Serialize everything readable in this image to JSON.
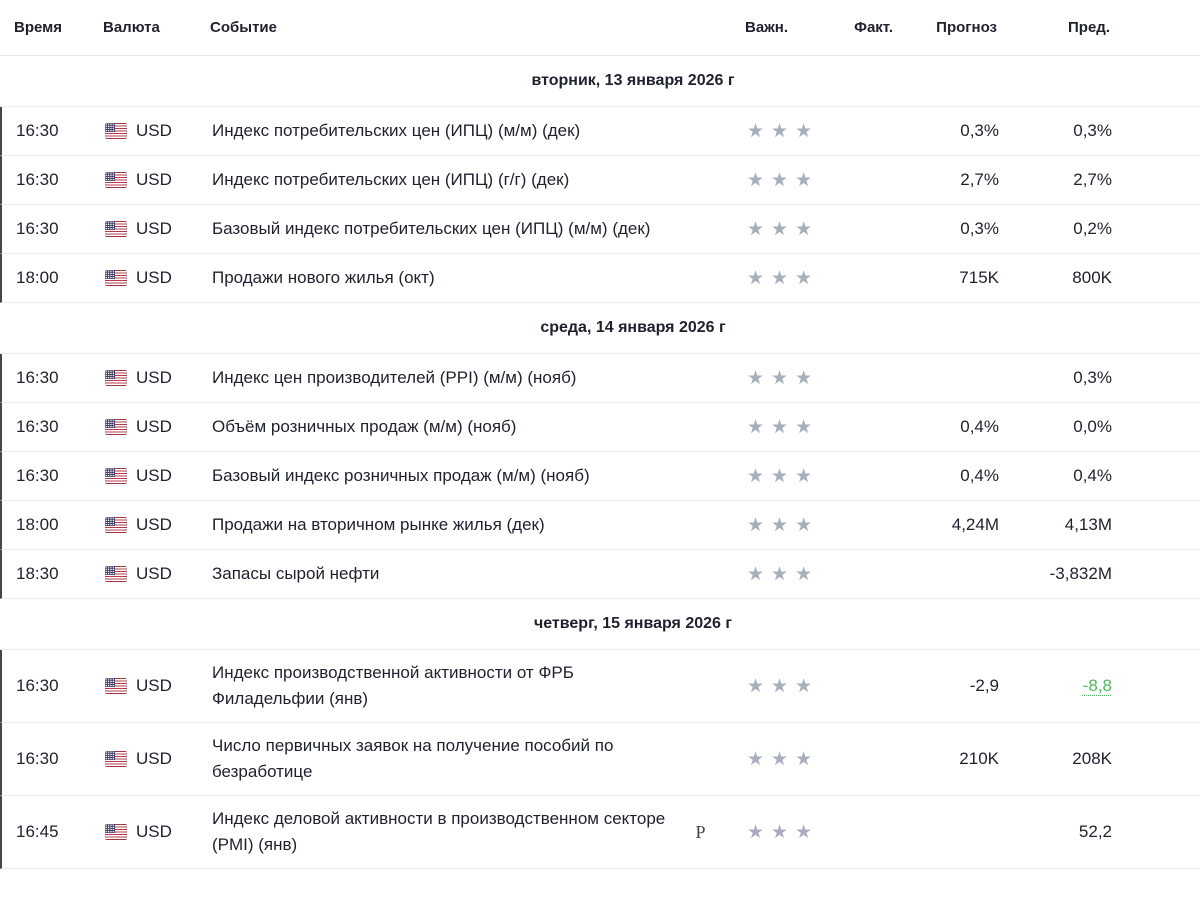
{
  "header": {
    "time": "Время",
    "currency": "Валюта",
    "event": "Событие",
    "importance": "Важн.",
    "actual": "Факт.",
    "forecast": "Прогноз",
    "previous": "Пред."
  },
  "icons": {
    "star": "★",
    "flag": "us-flag-icon",
    "preliminary_marker": "P"
  },
  "colors": {
    "text": "#1e222d",
    "star_gray": "#a8aebc",
    "green_link": "#4cbb5a",
    "divider": "#e9ecf1"
  },
  "sections": [
    {
      "date": "вторник, 13 января 2026 г",
      "rows": [
        {
          "time": "16:30",
          "currency": "USD",
          "event": "Индекс потребительских цен (ИПЦ) (м/м) (дек)",
          "preliminary": false,
          "importance": 3,
          "actual": "",
          "forecast": "0,3%",
          "previous": "0,3%",
          "previous_link": false
        },
        {
          "time": "16:30",
          "currency": "USD",
          "event": "Индекс потребительских цен (ИПЦ) (г/г) (дек)",
          "preliminary": false,
          "importance": 3,
          "actual": "",
          "forecast": "2,7%",
          "previous": "2,7%",
          "previous_link": false
        },
        {
          "time": "16:30",
          "currency": "USD",
          "event": "Базовый индекс потребительских цен (ИПЦ) (м/м) (дек)",
          "preliminary": false,
          "importance": 3,
          "actual": "",
          "forecast": "0,3%",
          "previous": "0,2%",
          "previous_link": false
        },
        {
          "time": "18:00",
          "currency": "USD",
          "event": "Продажи нового жилья  (окт)",
          "preliminary": false,
          "importance": 3,
          "actual": "",
          "forecast": "715K",
          "previous": "800K",
          "previous_link": false
        }
      ]
    },
    {
      "date": "среда, 14 января 2026 г",
      "rows": [
        {
          "time": "16:30",
          "currency": "USD",
          "event": "Индекс цен производителей (PPI) (м/м) (нояб)",
          "preliminary": false,
          "importance": 3,
          "actual": "",
          "forecast": "",
          "previous": "0,3%",
          "previous_link": false
        },
        {
          "time": "16:30",
          "currency": "USD",
          "event": "Объём розничных продаж (м/м) (нояб)",
          "preliminary": false,
          "importance": 3,
          "actual": "",
          "forecast": "0,4%",
          "previous": "0,0%",
          "previous_link": false
        },
        {
          "time": "16:30",
          "currency": "USD",
          "event": "Базовый индекс розничных продаж (м/м) (нояб)",
          "preliminary": false,
          "importance": 3,
          "actual": "",
          "forecast": "0,4%",
          "previous": "0,4%",
          "previous_link": false
        },
        {
          "time": "18:00",
          "currency": "USD",
          "event": "Продажи на вторичном рынке жилья  (дек)",
          "preliminary": false,
          "importance": 3,
          "actual": "",
          "forecast": "4,24M",
          "previous": "4,13M",
          "previous_link": false
        },
        {
          "time": "18:30",
          "currency": "USD",
          "event": "Запасы сырой нефти",
          "preliminary": false,
          "importance": 3,
          "actual": "",
          "forecast": "",
          "previous": "-3,832M",
          "previous_link": false
        }
      ]
    },
    {
      "date": "четверг, 15 января 2026 г",
      "rows": [
        {
          "time": "16:30",
          "currency": "USD",
          "event": "Индекс производственной активности от ФРБ Филадельфии  (янв)",
          "preliminary": false,
          "importance": 3,
          "actual": "",
          "forecast": "-2,9",
          "previous": "-8,8",
          "previous_link": true
        },
        {
          "time": "16:30",
          "currency": "USD",
          "event": "Число первичных заявок на получение пособий по безработице",
          "preliminary": false,
          "importance": 3,
          "actual": "",
          "forecast": "210K",
          "previous": "208K",
          "previous_link": false
        },
        {
          "time": "16:45",
          "currency": "USD",
          "event": "Индекс деловой активности в производственном секторе (PMI)  (янв)",
          "preliminary": true,
          "importance": 3,
          "actual": "",
          "forecast": "",
          "previous": "52,2",
          "previous_link": false
        }
      ]
    }
  ]
}
